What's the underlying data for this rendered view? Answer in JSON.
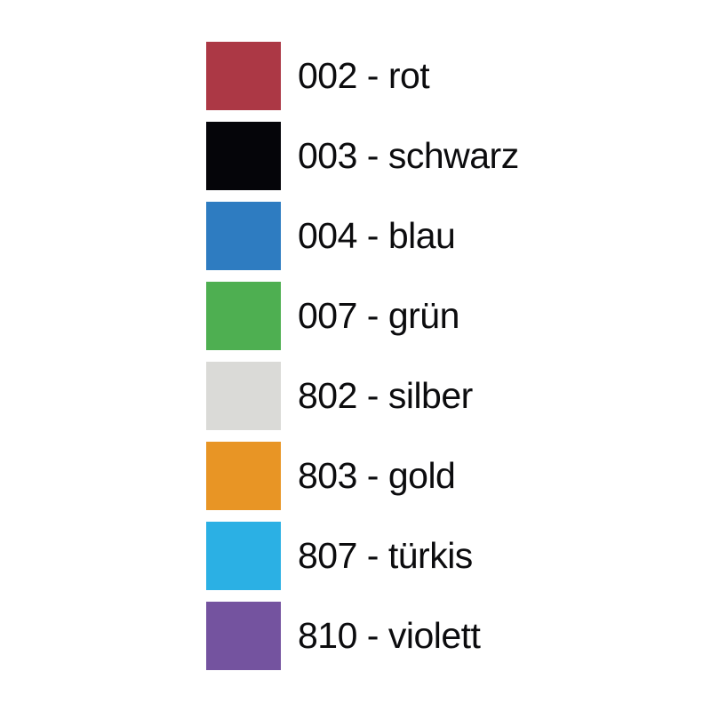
{
  "page": {
    "background_color": "#ffffff",
    "description": "Color swatch legend with product color codes"
  },
  "swatch_list": {
    "items": [
      {
        "code": "002",
        "name": "rot",
        "label": "002 - rot",
        "color": "#AC3845"
      },
      {
        "code": "003",
        "name": "schwarz",
        "label": "003 - schwarz",
        "color": "#050509"
      },
      {
        "code": "004",
        "name": "blau",
        "label": "004 - blau",
        "color": "#2E7CC1"
      },
      {
        "code": "007",
        "name": "grün",
        "label": "007 - grün",
        "color": "#4EAF51"
      },
      {
        "code": "802",
        "name": "silber",
        "label": "802 - silber",
        "color": "#DADAD7"
      },
      {
        "code": "803",
        "name": "gold",
        "label": "803 - gold",
        "color": "#E89525"
      },
      {
        "code": "807",
        "name": "türkis",
        "label": "807 - türkis",
        "color": "#2BB0E4"
      },
      {
        "code": "810",
        "name": "violett",
        "label": "810 - violett",
        "color": "#74539F"
      }
    ]
  }
}
